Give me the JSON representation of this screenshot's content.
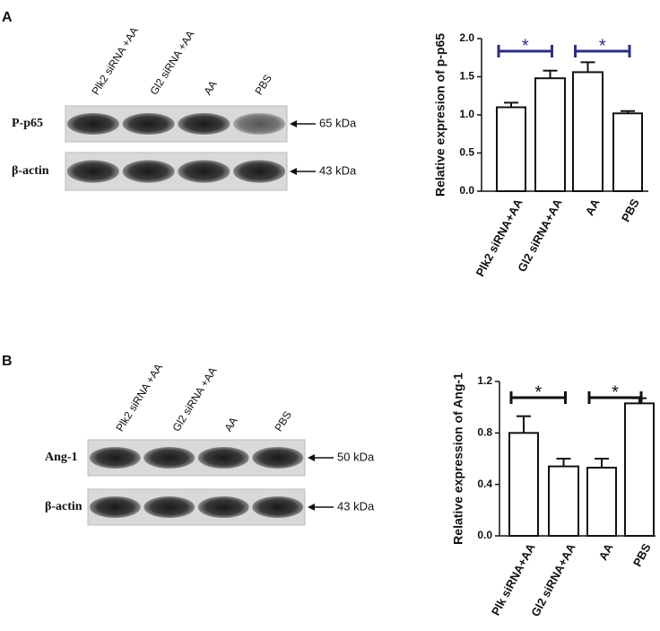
{
  "chart_data": [
    {
      "type": "bar",
      "ylabel": "Relative expresion of p-p65",
      "categories": [
        "Plk2 siRNA+AA",
        "Gl2 siRNA+AA",
        "AA",
        "PBS"
      ],
      "values": [
        1.1,
        1.48,
        1.56,
        1.02
      ],
      "errors": [
        0.06,
        0.1,
        0.13,
        0.03
      ],
      "color": "#ffffff",
      "ylim": [
        0,
        2.0
      ],
      "yticks": [
        {
          "value": 0,
          "label": "0.0"
        },
        {
          "value": 0.5,
          "label": "0.5"
        },
        {
          "value": 1.0,
          "label": "1.0"
        },
        {
          "value": 1.5,
          "label": "1.5"
        },
        {
          "value": 2.0,
          "label": "2.0"
        }
      ],
      "annotations": [
        "*",
        "*"
      ],
      "annotation_color": "#2e2e80"
    },
    {
      "type": "bar",
      "ylabel": "Relative expression of Ang-1",
      "categories": [
        "Plk siRNA+AA",
        "Gl2 siRNA+AA",
        "AA",
        "PBS"
      ],
      "values": [
        0.8,
        0.54,
        0.53,
        1.03
      ],
      "errors": [
        0.13,
        0.06,
        0.07,
        0.04
      ],
      "color": "#ffffff",
      "ylim": [
        0,
        1.2
      ],
      "yticks": [
        {
          "value": 0,
          "label": "0.0"
        },
        {
          "value": 0.4,
          "label": "0.4"
        },
        {
          "value": 0.8,
          "label": "0.8"
        },
        {
          "value": 1.2,
          "label": "1.2"
        }
      ],
      "annotations": [
        "*",
        "*"
      ],
      "annotation_color": "#111111"
    }
  ],
  "blots": [
    {
      "panel": "A",
      "lanes": [
        "Plk2 siRNA +AA",
        "Gl2 siRNA +AA",
        "AA",
        "PBS"
      ],
      "rows": [
        {
          "label": "P-p65",
          "size": "65 kDa"
        },
        {
          "label": "β-actin",
          "size": "43 kDa"
        }
      ]
    },
    {
      "panel": "B",
      "lanes": [
        "Plk2 siRNA +AA",
        "Gl2 siRNA +AA",
        "AA",
        "PBS"
      ],
      "rows": [
        {
          "label": "Ang-1",
          "size": "50 kDa"
        },
        {
          "label": "β-actin",
          "size": "43 kDa"
        }
      ]
    }
  ]
}
